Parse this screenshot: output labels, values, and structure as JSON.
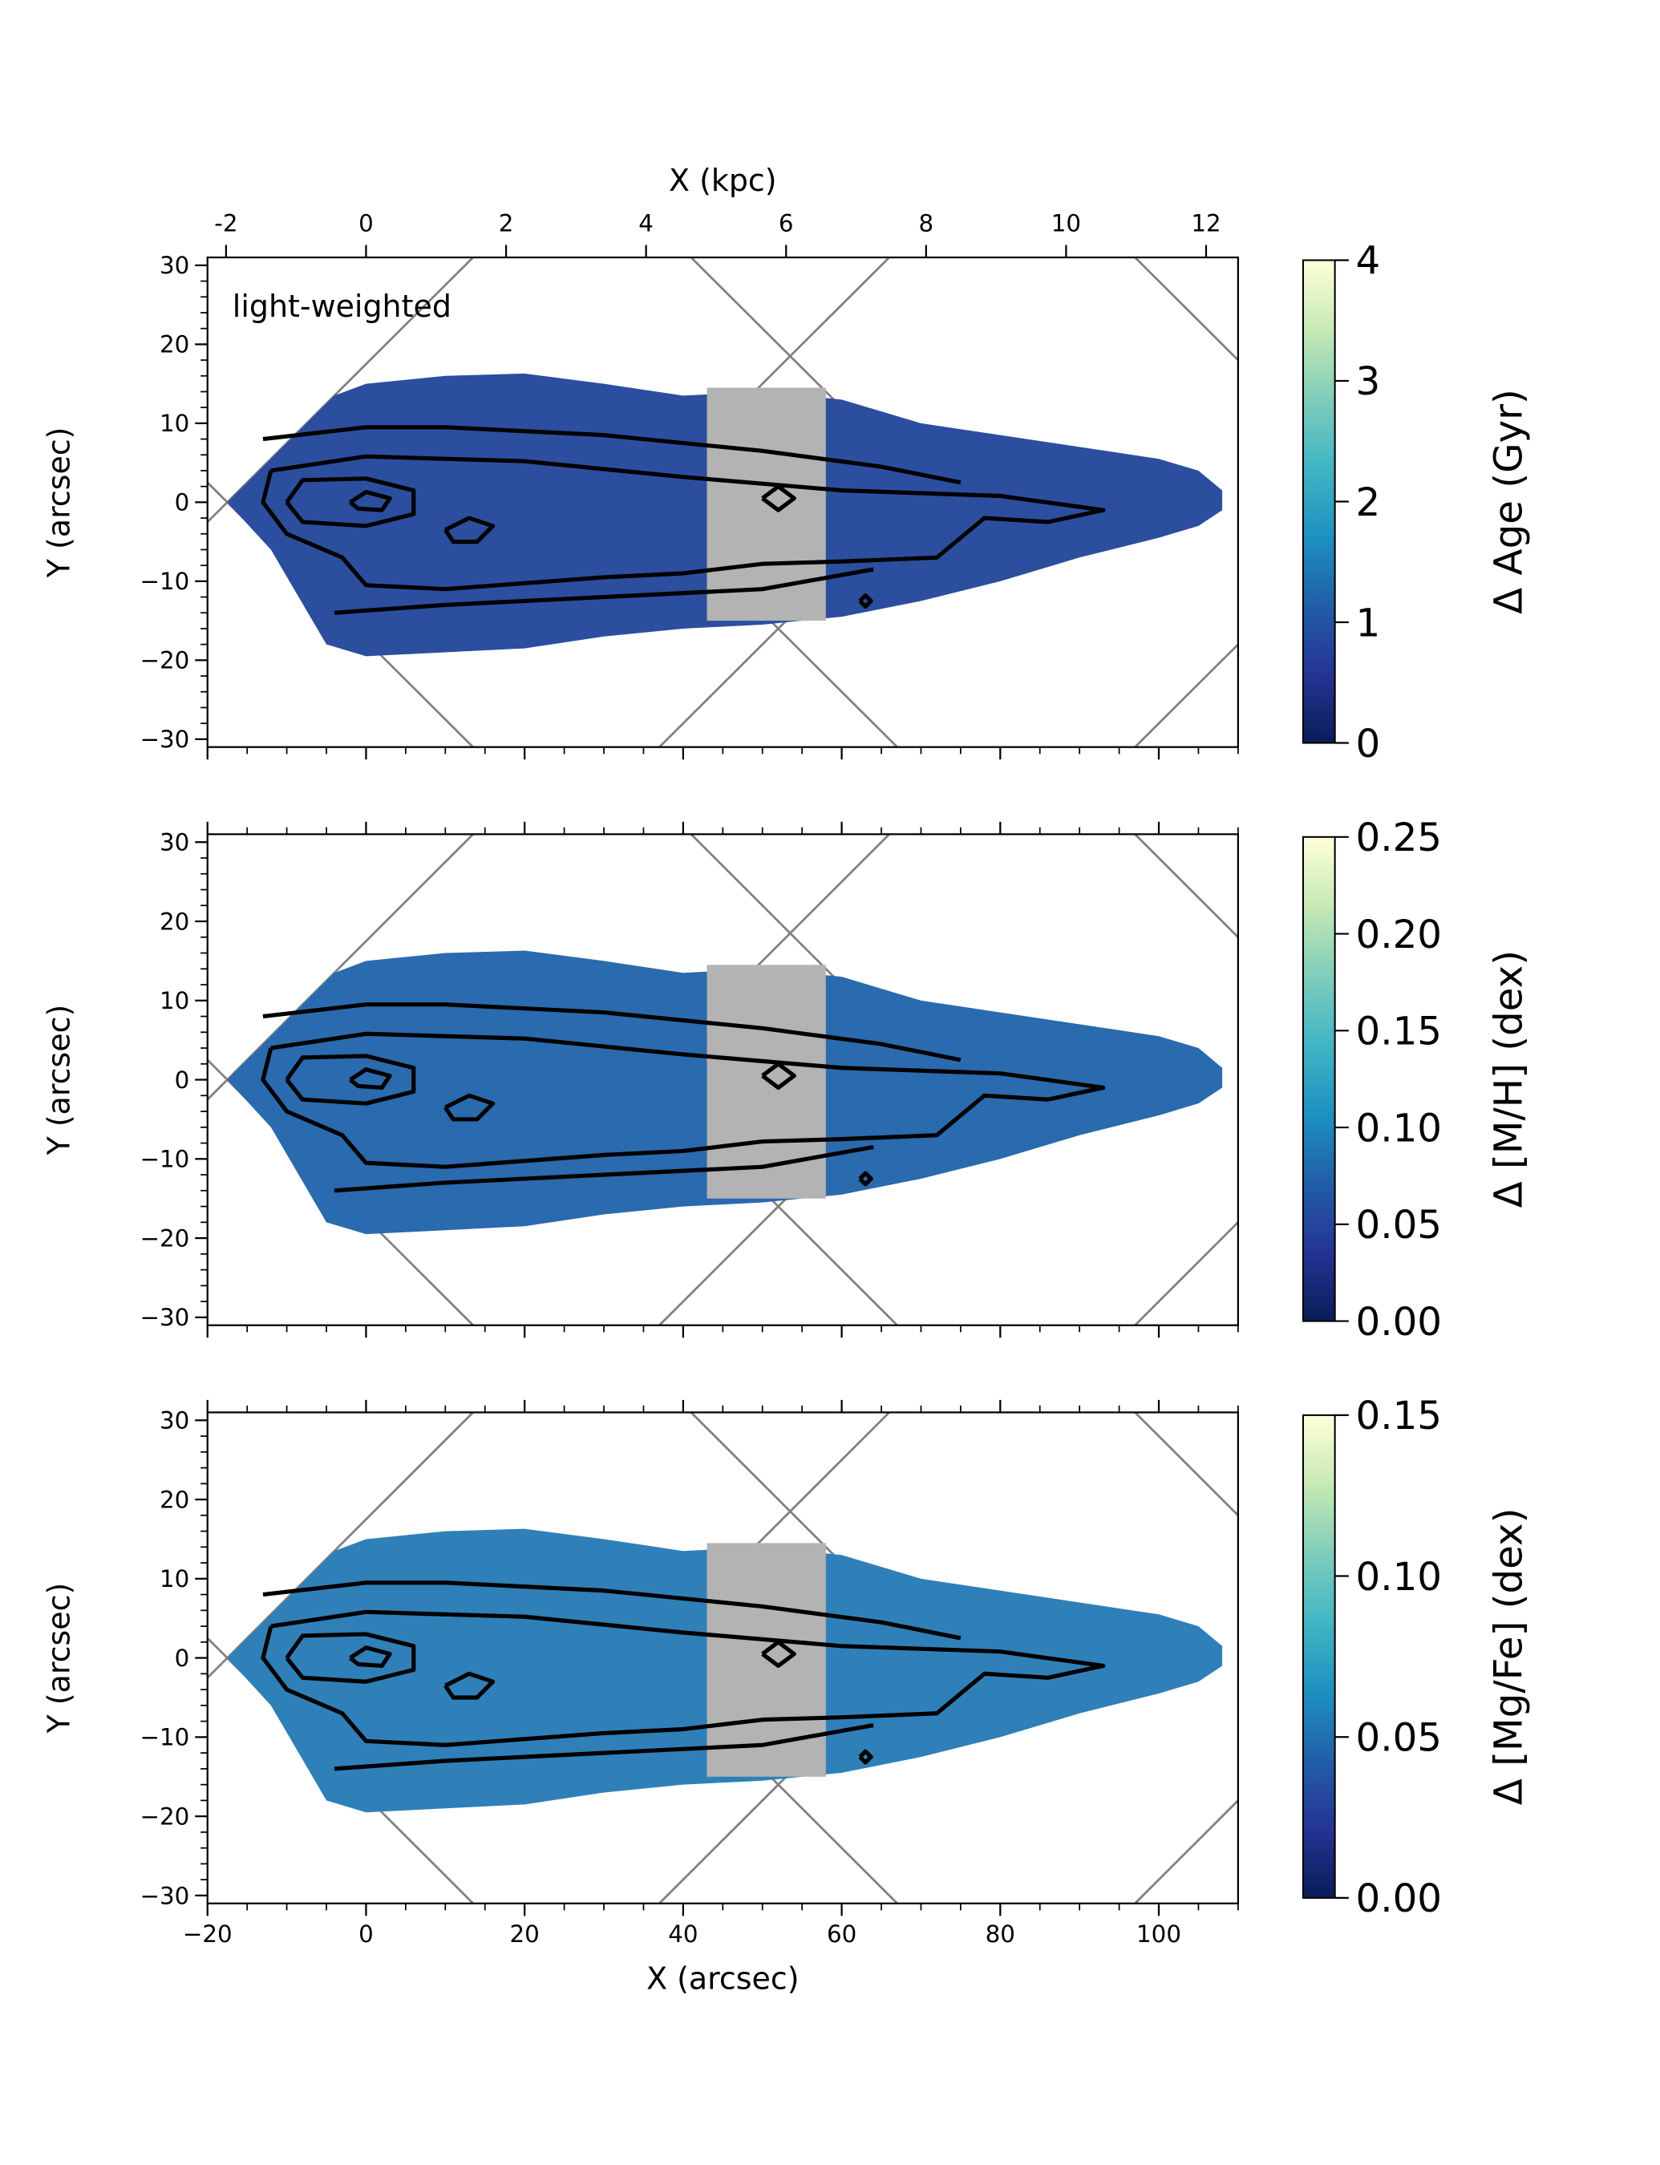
{
  "chart_data": [
    {
      "type": "map",
      "annotation": "light-weighted",
      "x2label": "X (kpc)",
      "x2lim": [
        -2.265,
        12.457
      ],
      "x2ticks": [
        -2,
        0,
        2,
        4,
        6,
        8,
        10,
        12
      ],
      "ylabel": "Y (arcsec)",
      "xlim": [
        -20,
        110
      ],
      "xticks": [
        -20,
        0,
        20,
        40,
        60,
        80,
        100
      ],
      "ylim": [
        -31,
        31
      ],
      "yticks": [
        {
          "value": -30,
          "label": "−30"
        },
        {
          "value": -20,
          "label": "−20"
        },
        {
          "value": -10,
          "label": "−10"
        },
        0,
        10,
        20,
        30
      ],
      "colorbar": {
        "label": "Δ Age (Gyr)",
        "lim": [
          0,
          4
        ],
        "ticks": [
          0,
          1,
          2,
          3,
          4
        ]
      },
      "colormap": [
        "#081d58",
        "#253494",
        "#225ea8",
        "#1d91c0",
        "#41b6c4",
        "#7fcdbb",
        "#c7e9b4",
        "#ffffd9"
      ],
      "map_color": "#2b4f9e",
      "mask_color": "#b3b3b3"
    },
    {
      "type": "map",
      "ylabel": "Y (arcsec)",
      "xlim": [
        -20,
        110
      ],
      "xticks": [
        -20,
        0,
        20,
        40,
        60,
        80,
        100
      ],
      "ylim": [
        -31,
        31
      ],
      "yticks": [
        {
          "value": -30,
          "label": "−30"
        },
        {
          "value": -20,
          "label": "−20"
        },
        {
          "value": -10,
          "label": "−10"
        },
        0,
        10,
        20,
        30
      ],
      "colorbar": {
        "label": "Δ [M/H] (dex)",
        "lim": [
          0,
          0.25
        ],
        "ticks": [
          {
            "value": 0,
            "label": "0.00"
          },
          0.05,
          {
            "value": 0.1,
            "label": "0.10"
          },
          0.15,
          {
            "value": 0.2,
            "label": "0.20"
          },
          0.25
        ]
      },
      "colormap": [
        "#081d58",
        "#253494",
        "#225ea8",
        "#1d91c0",
        "#41b6c4",
        "#7fcdbb",
        "#c7e9b4",
        "#ffffd9"
      ],
      "map_color": "#2a6aae",
      "mask_color": "#b3b3b3"
    },
    {
      "type": "map",
      "xlabel": "X (arcsec)",
      "ylabel": "Y (arcsec)",
      "xlim": [
        -20,
        110
      ],
      "xticks": [
        {
          "value": -20,
          "label": "−20"
        },
        0,
        20,
        40,
        60,
        80,
        100
      ],
      "ylim": [
        -31,
        31
      ],
      "yticks": [
        {
          "value": -30,
          "label": "−30"
        },
        {
          "value": -20,
          "label": "−20"
        },
        {
          "value": -10,
          "label": "−10"
        },
        0,
        10,
        20,
        30
      ],
      "colorbar": {
        "label": "Δ [Mg/Fe] (dex)",
        "lim": [
          0,
          0.15
        ],
        "ticks": [
          {
            "value": 0,
            "label": "0.00"
          },
          0.05,
          {
            "value": 0.1,
            "label": "0.10"
          },
          0.15
        ]
      },
      "colormap": [
        "#081d58",
        "#253494",
        "#225ea8",
        "#1d91c0",
        "#41b6c4",
        "#7fcdbb",
        "#c7e9b4",
        "#ffffd9"
      ],
      "map_color": "#2f80b8",
      "mask_color": "#b3b3b3"
    }
  ]
}
